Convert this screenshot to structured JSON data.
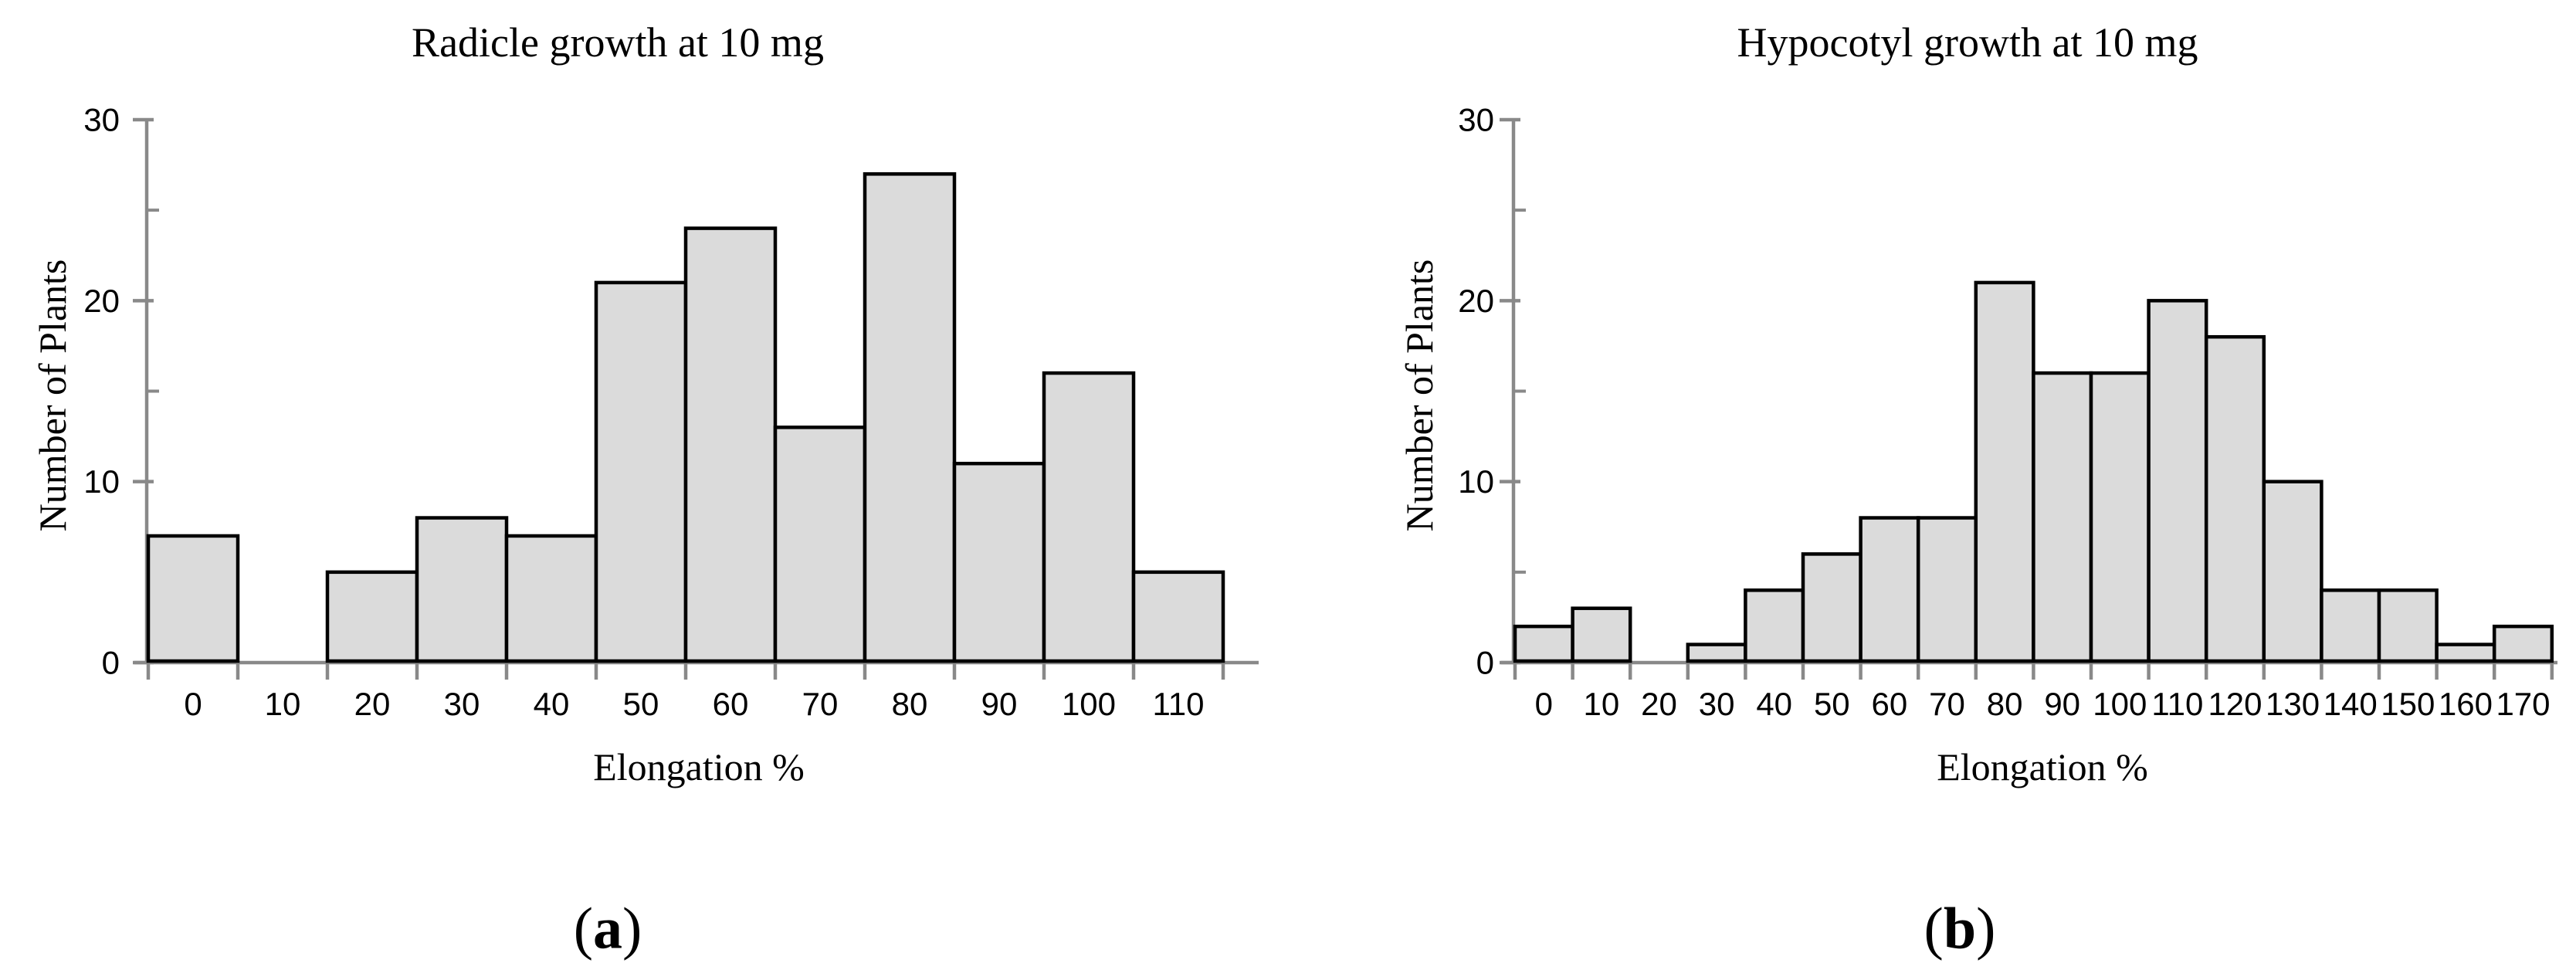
{
  "figure": {
    "background": "#ffffff",
    "colors": {
      "bar_fill": "#dbdbdb",
      "bar_stroke": "#000000",
      "axis": "#898989",
      "text": "#000000"
    }
  },
  "chart_data": [
    {
      "type": "bar",
      "subtype": "histogram",
      "title": "Radicle growth at 10 mg",
      "xlabel": "Elongation %",
      "ylabel": "Number of Plants",
      "caption": {
        "open": "(",
        "letter": "a",
        "close": ")"
      },
      "categories": [
        0,
        10,
        20,
        30,
        40,
        50,
        60,
        70,
        80,
        90,
        100,
        110
      ],
      "values": [
        7,
        0,
        5,
        8,
        7,
        21,
        24,
        13,
        27,
        11,
        16,
        5
      ],
      "ylim": [
        0,
        30
      ],
      "yticks": [
        0,
        10,
        20,
        30
      ],
      "yminorticks": [
        5,
        15,
        25
      ],
      "grid": false,
      "legend": null
    },
    {
      "type": "bar",
      "subtype": "histogram",
      "title": "Hypocotyl growth at 10 mg",
      "xlabel": "Elongation %",
      "ylabel": "Number of Plants",
      "caption": {
        "open": "(",
        "letter": "b",
        "close": ")"
      },
      "categories": [
        0,
        10,
        20,
        30,
        40,
        50,
        60,
        70,
        80,
        90,
        100,
        110,
        120,
        130,
        140,
        150,
        160,
        170
      ],
      "values": [
        2,
        3,
        0,
        1,
        4,
        6,
        8,
        8,
        21,
        16,
        16,
        20,
        18,
        10,
        4,
        4,
        1,
        2
      ],
      "ylim": [
        0,
        30
      ],
      "yticks": [
        0,
        10,
        20,
        30
      ],
      "yminorticks": [
        5,
        15,
        25
      ],
      "grid": false,
      "legend": null
    }
  ]
}
